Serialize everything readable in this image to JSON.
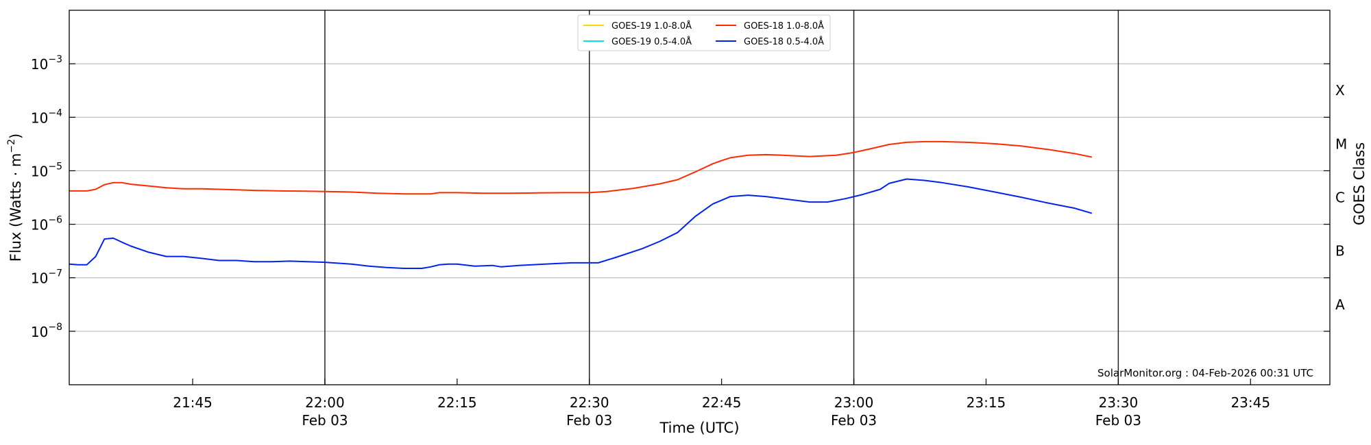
{
  "chart_data": {
    "type": "line",
    "title": "",
    "xlabel": "Time (UTC)",
    "ylabel_base": "Flux (Watts · m",
    "ylabel_exp": "−2",
    "ylabel_close": ")",
    "y2label": "GOES Class",
    "yscale": "log",
    "ylim": [
      1e-09,
      0.01
    ],
    "xlim": [
      "21:31",
      "23:54"
    ],
    "grid": "horizontal",
    "legend_position": "top-center",
    "credit": "SolarMonitor.org : 04-Feb-2026 00:31 UTC",
    "x_ticks": [
      {
        "t": "21:45",
        "line1": "21:45",
        "line2": ""
      },
      {
        "t": "22:00",
        "line1": "22:00",
        "line2": "Feb 03"
      },
      {
        "t": "22:15",
        "line1": "22:15",
        "line2": ""
      },
      {
        "t": "22:30",
        "line1": "22:30",
        "line2": "Feb 03"
      },
      {
        "t": "22:45",
        "line1": "22:45",
        "line2": ""
      },
      {
        "t": "23:00",
        "line1": "23:00",
        "line2": "Feb 03"
      },
      {
        "t": "23:15",
        "line1": "23:15",
        "line2": ""
      },
      {
        "t": "23:30",
        "line1": "23:30",
        "line2": "Feb 03"
      },
      {
        "t": "23:45",
        "line1": "23:45",
        "line2": ""
      }
    ],
    "vlines": [
      "22:00",
      "22:30",
      "23:00",
      "23:30"
    ],
    "y_ticks": [
      {
        "exp": -8,
        "base": "10",
        "sup": "−8"
      },
      {
        "exp": -7,
        "base": "10",
        "sup": "−7"
      },
      {
        "exp": -6,
        "base": "10",
        "sup": "−6"
      },
      {
        "exp": -5,
        "base": "10",
        "sup": "−5"
      },
      {
        "exp": -4,
        "base": "10",
        "sup": "−4"
      },
      {
        "exp": -3,
        "base": "10",
        "sup": "−3"
      }
    ],
    "goes_classes": [
      {
        "label": "A",
        "exp": -7.5
      },
      {
        "label": "B",
        "exp": -6.5
      },
      {
        "label": "C",
        "exp": -5.5
      },
      {
        "label": "M",
        "exp": -4.5
      },
      {
        "label": "X",
        "exp": -3.5
      }
    ],
    "legend": [
      {
        "name": "GOES-19 1.0-8.0Å",
        "color": "#ffd700"
      },
      {
        "name": "GOES-19 0.5-4.0Å",
        "color": "#00e5ee"
      },
      {
        "name": "GOES-18 1.0-8.0Å",
        "color": "#ff2a00"
      },
      {
        "name": "GOES-18 0.5-4.0Å",
        "color": "#0022ee"
      }
    ],
    "series": [
      {
        "name": "GOES-18 1.0-8.0Å",
        "color": "#ff2a00",
        "x": [
          "21:31",
          "21:33",
          "21:34",
          "21:35",
          "21:36",
          "21:37",
          "21:38",
          "21:40",
          "21:42",
          "21:44",
          "21:46",
          "21:48",
          "21:50",
          "21:52",
          "21:55",
          "21:58",
          "22:00",
          "22:03",
          "22:06",
          "22:09",
          "22:12",
          "22:13",
          "22:15",
          "22:18",
          "22:21",
          "22:24",
          "22:27",
          "22:30",
          "22:32",
          "22:35",
          "22:38",
          "22:40",
          "22:42",
          "22:44",
          "22:45",
          "22:46",
          "22:48",
          "22:50",
          "22:52",
          "22:55",
          "22:58",
          "23:00",
          "23:02",
          "23:04",
          "23:06",
          "23:08",
          "23:10",
          "23:13",
          "23:16",
          "23:19",
          "23:22",
          "23:25",
          "23:27"
        ],
        "values": [
          4.2e-06,
          4.2e-06,
          4.5e-06,
          5.5e-06,
          6e-06,
          6e-06,
          5.6e-06,
          5.2e-06,
          4.8e-06,
          4.6e-06,
          4.6e-06,
          4.5e-06,
          4.4e-06,
          4.3e-06,
          4.2e-06,
          4.15e-06,
          4.1e-06,
          4e-06,
          3.8e-06,
          3.7e-06,
          3.7e-06,
          3.9e-06,
          3.9e-06,
          3.8e-06,
          3.8e-06,
          3.85e-06,
          3.9e-06,
          3.9e-06,
          4.1e-06,
          4.7e-06,
          5.7e-06,
          6.8e-06,
          9.5e-06,
          1.35e-05,
          1.55e-05,
          1.75e-05,
          1.95e-05,
          2e-05,
          1.95e-05,
          1.85e-05,
          1.95e-05,
          2.2e-05,
          2.6e-05,
          3.1e-05,
          3.4e-05,
          3.5e-05,
          3.5e-05,
          3.4e-05,
          3.2e-05,
          2.9e-05,
          2.5e-05,
          2.1e-05,
          1.8e-05
        ]
      },
      {
        "name": "GOES-18 0.5-4.0Å",
        "color": "#0022ee",
        "x": [
          "21:31",
          "21:32",
          "21:33",
          "21:34",
          "21:35",
          "21:36",
          "21:37",
          "21:38",
          "21:40",
          "21:42",
          "21:44",
          "21:46",
          "21:48",
          "21:50",
          "21:52",
          "21:54",
          "21:56",
          "21:58",
          "22:00",
          "22:03",
          "22:05",
          "22:07",
          "22:09",
          "22:11",
          "22:12",
          "22:13",
          "22:14",
          "22:15",
          "22:17",
          "22:19",
          "22:20",
          "22:22",
          "22:25",
          "22:28",
          "22:30",
          "22:31",
          "22:33",
          "22:36",
          "22:38",
          "22:40",
          "22:42",
          "22:44",
          "22:46",
          "22:48",
          "22:50",
          "22:52",
          "22:55",
          "22:57",
          "22:59",
          "23:01",
          "23:03",
          "23:04",
          "23:06",
          "23:08",
          "23:10",
          "23:13",
          "23:16",
          "23:19",
          "23:22",
          "23:25",
          "23:27"
        ],
        "values": [
          1.8e-07,
          1.75e-07,
          1.75e-07,
          2.5e-07,
          5.3e-07,
          5.5e-07,
          4.6e-07,
          3.9e-07,
          3e-07,
          2.5e-07,
          2.5e-07,
          2.3e-07,
          2.1e-07,
          2.1e-07,
          2e-07,
          2e-07,
          2.05e-07,
          2e-07,
          1.95e-07,
          1.8e-07,
          1.65e-07,
          1.55e-07,
          1.5e-07,
          1.5e-07,
          1.6e-07,
          1.75e-07,
          1.8e-07,
          1.8e-07,
          1.65e-07,
          1.7e-07,
          1.6e-07,
          1.7e-07,
          1.8e-07,
          1.9e-07,
          1.9e-07,
          1.9e-07,
          2.4e-07,
          3.5e-07,
          4.8e-07,
          7e-07,
          1.4e-06,
          2.4e-06,
          3.3e-06,
          3.5e-06,
          3.3e-06,
          3e-06,
          2.6e-06,
          2.6e-06,
          3e-06,
          3.6e-06,
          4.5e-06,
          5.8e-06,
          7e-06,
          6.6e-06,
          6e-06,
          5e-06,
          4e-06,
          3.2e-06,
          2.5e-06,
          2e-06,
          1.6e-06
        ]
      }
    ]
  }
}
